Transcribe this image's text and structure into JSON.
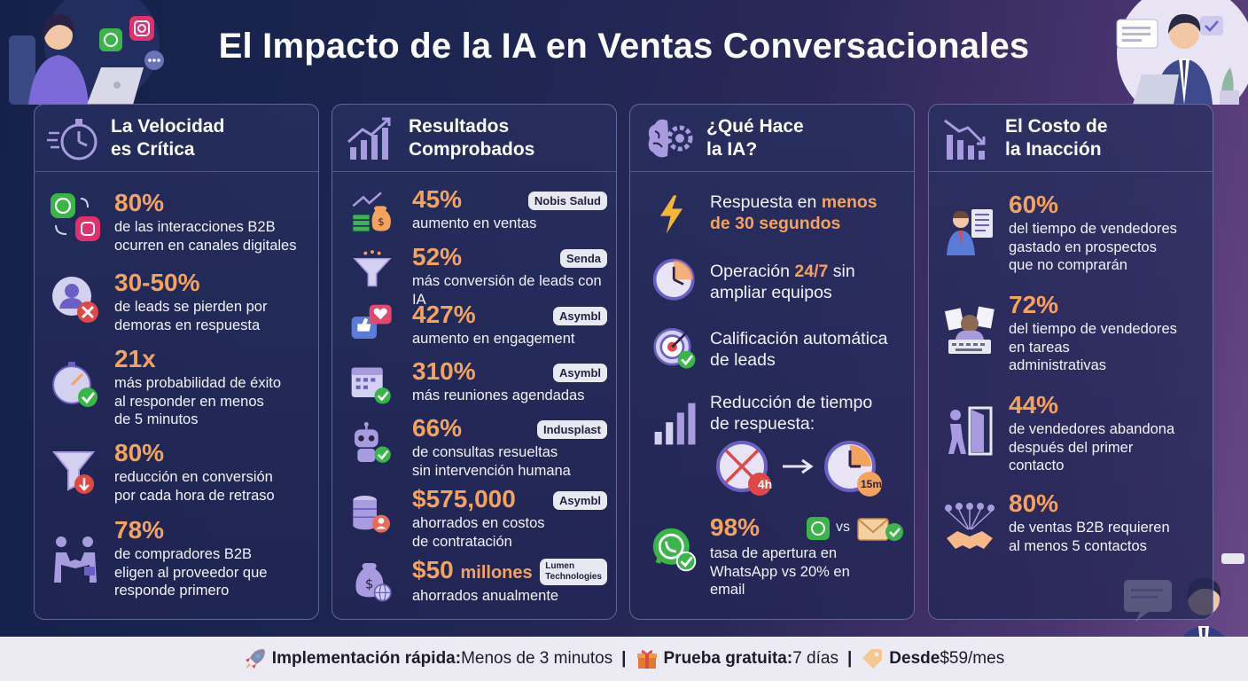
{
  "title": "El Impacto de la IA en Ventas Conversacionales",
  "col1": {
    "title1": "La Velocidad",
    "title2": "es Crítica",
    "items": [
      {
        "stat": "80%",
        "l1": "de las interacciones B2B",
        "l2": "ocurren en canales digitales"
      },
      {
        "stat": "30-50%",
        "l1": "de leads se pierden por",
        "l2": "demoras en respuesta"
      },
      {
        "stat": "21x",
        "l1": "más probabilidad de éxito",
        "l2": "al responder en menos",
        "l3": "de 5 minutos"
      },
      {
        "stat": "80%",
        "l1": "reducción en conversión",
        "l2": "por cada hora de retraso"
      },
      {
        "stat": "78%",
        "l1": "de compradores B2B",
        "l2": "eligen al proveedor que",
        "l3": "responde primero"
      }
    ]
  },
  "col2": {
    "title1": "Resultados",
    "title2": "Comprobados",
    "items": [
      {
        "stat": "45%",
        "badge": "Nobis Salud",
        "l1": "aumento en ventas"
      },
      {
        "stat": "52%",
        "badge": "Senda",
        "l1": "más conversión de leads con IA"
      },
      {
        "stat": "427%",
        "badge": "Asymbl",
        "l1": "aumento en engagement"
      },
      {
        "stat": "310%",
        "badge": "Asymbl",
        "l1": "más reuniones agendadas"
      },
      {
        "stat": "66%",
        "badge": "Indusplast",
        "l1": "de consultas resueltas",
        "l2": "sin intervención humana"
      },
      {
        "stat": "$575,000",
        "badge": "Asymbl",
        "l1": "ahorrados en costos",
        "l2": "de contratación"
      },
      {
        "stat": "$50",
        "stat_suffix": "millones",
        "badge1": "Lumen",
        "badge2": "Technologies",
        "l1": "ahorrados anualmente"
      }
    ]
  },
  "col3": {
    "title1": "¿Qué Hace",
    "title2": "la IA?",
    "i1a": "Respuesta en ",
    "i1b": "menos",
    "i1c": "de 30 segundos",
    "i2a": "Operación ",
    "i2b": "24/7",
    "i2c": " sin",
    "i2d": "ampliar equipos",
    "i3a": "Calificación automática",
    "i3b": "de leads",
    "i4a": "Reducción de tiempo",
    "i4b": "de respuesta:",
    "before": "4h",
    "after": "15m",
    "stat": "98%",
    "vs": "vs",
    "i5a": "tasa de apertura en",
    "i5b": "WhatsApp vs 20% en",
    "i5c": "email"
  },
  "col4": {
    "title1": "El Costo de",
    "title2": "la Inacción",
    "items": [
      {
        "stat": "60%",
        "l1": "del tiempo de vendedores",
        "l2": "gastado en prospectos",
        "l3": "que no comprarán"
      },
      {
        "stat": "72%",
        "l1": "del tiempo de vendedores",
        "l2": "en tareas",
        "l3": "administrativas"
      },
      {
        "stat": "44%",
        "l1": "de vendedores abandona",
        "l2": "después del primer",
        "l3": "contacto"
      },
      {
        "stat": "80%",
        "l1": "de ventas B2B requieren",
        "l2": "al menos 5 contactos"
      }
    ]
  },
  "footer": {
    "a_label": "Implementación rápida:",
    "a_value": " Menos de 3 minutos",
    "b_label": "Prueba gratuita:",
    "b_value": " 7 días",
    "c_label": "Desde",
    "c_value": " $59/mes",
    "sep": "|"
  },
  "colors": {
    "accent": "#f4a35e",
    "icon": "#a99be0",
    "green": "#3bb54a"
  }
}
